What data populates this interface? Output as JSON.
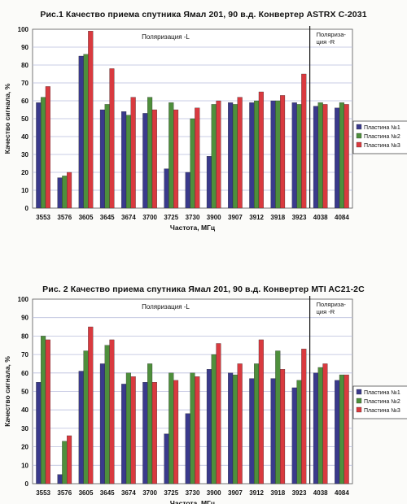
{
  "colors": {
    "series1": "#3a3a8c",
    "series2": "#4e8f3c",
    "series3": "#d93a3f",
    "grid": "#b9bddc",
    "divider": "#111111"
  },
  "chart_data": [
    {
      "type": "bar",
      "title": "Рис.1 Качество приема спутника Ямал 201, 90 в.д. Конвертер ASTRX C-2031",
      "xlabel": "Частота, МГц",
      "ylabel": "Качество сигнала, %",
      "ylim": [
        0,
        100
      ],
      "yticks": [
        "0",
        "10",
        "20",
        "30",
        "40",
        "50",
        "60",
        "70",
        "80",
        "90",
        "100"
      ],
      "grid": true,
      "legend_position": "right",
      "categories": [
        "3553",
        "3576",
        "3605",
        "3645",
        "3674",
        "3700",
        "3725",
        "3730",
        "3900",
        "3907",
        "3912",
        "3918",
        "3923",
        "4038",
        "4084"
      ],
      "series": [
        {
          "name": "Пластина №1",
          "values": [
            59,
            17,
            85,
            55,
            54,
            53,
            22,
            20,
            29,
            59,
            59,
            60,
            59,
            57,
            56
          ]
        },
        {
          "name": "Пластина №2",
          "values": [
            62,
            18,
            86,
            58,
            52,
            62,
            59,
            50,
            58,
            58,
            60,
            60,
            58,
            59,
            59
          ]
        },
        {
          "name": "Пластина №3",
          "values": [
            68,
            20,
            99,
            78,
            62,
            55,
            55,
            56,
            60,
            62,
            65,
            63,
            75,
            58,
            58
          ]
        }
      ],
      "annotations": [
        "Поляризация -L",
        "Поляриза-\nция -R"
      ]
    },
    {
      "type": "bar",
      "title": "Рис. 2 Качество приема спутника Ямал 201, 90 в.д. Конвертер MTI AC21-2C",
      "xlabel": "Частота, МГц",
      "ylabel": "Качество сигнала, %",
      "ylim": [
        0,
        100
      ],
      "yticks": [
        "0",
        "10",
        "20",
        "30",
        "40",
        "50",
        "60",
        "70",
        "80",
        "90",
        "100"
      ],
      "grid": true,
      "legend_position": "right",
      "categories": [
        "3553",
        "3576",
        "3605",
        "3645",
        "3674",
        "3700",
        "3725",
        "3730",
        "3900",
        "3907",
        "3912",
        "3918",
        "3923",
        "4038",
        "4084"
      ],
      "series": [
        {
          "name": "Пластина №1",
          "values": [
            55,
            5,
            61,
            65,
            54,
            55,
            27,
            38,
            62,
            60,
            57,
            57,
            52,
            60,
            56
          ]
        },
        {
          "name": "Пластина №2",
          "values": [
            80,
            23,
            72,
            75,
            60,
            65,
            60,
            60,
            70,
            59,
            65,
            72,
            56,
            63,
            59
          ]
        },
        {
          "name": "Пластина №3",
          "values": [
            78,
            26,
            85,
            78,
            58,
            55,
            56,
            58,
            76,
            65,
            78,
            62,
            73,
            65,
            59
          ]
        }
      ],
      "annotations": [
        "Поляризация -L",
        "Поляриза-\nция -R"
      ]
    }
  ]
}
